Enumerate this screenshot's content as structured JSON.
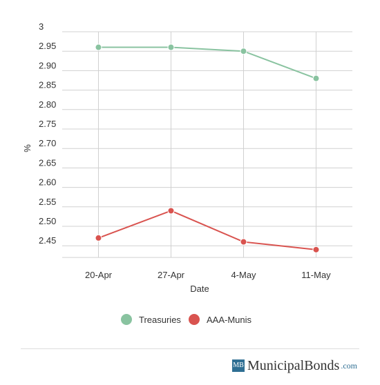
{
  "chart_data": {
    "type": "line",
    "categories": [
      "20-Apr",
      "27-Apr",
      "4-May",
      "11-May"
    ],
    "series": [
      {
        "name": "Treasuries",
        "color": "#89c3a0",
        "values": [
          2.96,
          2.96,
          2.95,
          2.88
        ]
      },
      {
        "name": "AAA-Munis",
        "color": "#d9534f",
        "values": [
          2.47,
          2.54,
          2.46,
          2.44
        ]
      }
    ],
    "xlabel": "Date",
    "ylabel": "%",
    "y_ticks": [
      "3",
      "2.95",
      "2.90",
      "2.85",
      "2.80",
      "2.75",
      "2.70",
      "2.65",
      "2.60",
      "2.55",
      "2.50",
      "2.45"
    ],
    "ylim": [
      2.42,
      3.0
    ],
    "grid": true,
    "legend_position": "bottom"
  },
  "branding": {
    "logo_text": "MB",
    "name": "MunicipalBonds",
    "domain": ".com"
  }
}
